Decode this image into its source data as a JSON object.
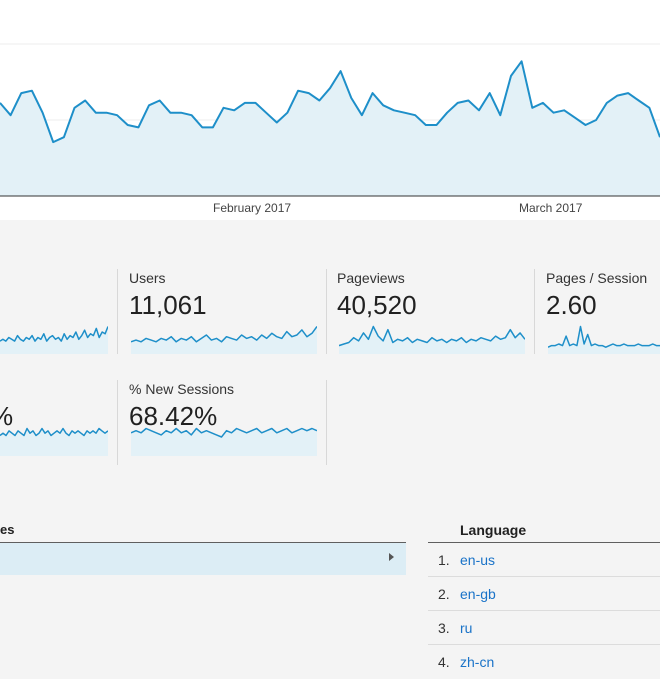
{
  "trend_chart": {
    "x_labels": [
      "February 2017",
      "March 2017"
    ],
    "series_values": [
      38,
      33,
      42,
      43,
      34,
      22,
      24,
      36,
      39,
      34,
      34,
      33,
      29,
      28,
      37,
      39,
      34,
      34,
      33,
      28,
      28,
      36,
      35,
      38,
      38,
      34,
      30,
      34,
      43,
      42,
      39,
      44,
      51,
      40,
      33,
      42,
      37,
      35,
      34,
      33,
      29,
      29,
      34,
      38,
      39,
      35,
      42,
      33,
      49,
      55,
      36,
      38,
      34,
      35,
      32,
      29,
      31,
      38,
      41,
      42,
      39,
      36,
      24
    ],
    "y_max": 80,
    "colors": {
      "line": "#1e8fc9",
      "fill": "#e3f1f7"
    }
  },
  "metrics": [
    {
      "name": "",
      "value": "",
      "spark": [
        6,
        7,
        6,
        8,
        7,
        6,
        9,
        7,
        6,
        8,
        7,
        9,
        6,
        8,
        7,
        10,
        6,
        8,
        9,
        7,
        8,
        6,
        10,
        7,
        9,
        8,
        11,
        7,
        9,
        12,
        8,
        10,
        9,
        13,
        8,
        11,
        10,
        14
      ]
    },
    {
      "name": "Users",
      "value": "11,061",
      "spark": [
        6,
        7,
        6,
        8,
        7,
        6,
        8,
        7,
        9,
        6,
        8,
        7,
        9,
        6,
        8,
        10,
        7,
        8,
        6,
        9,
        8,
        7,
        10,
        8,
        9,
        7,
        10,
        8,
        11,
        9,
        8,
        12,
        9,
        10,
        13,
        9,
        11,
        15
      ]
    },
    {
      "name": "Pageviews",
      "value": "40,520",
      "spark": [
        4,
        5,
        6,
        9,
        7,
        12,
        8,
        16,
        10,
        7,
        14,
        6,
        8,
        7,
        9,
        6,
        8,
        7,
        6,
        9,
        7,
        8,
        6,
        8,
        7,
        9,
        6,
        8,
        7,
        9,
        8,
        7,
        10,
        8,
        9,
        14,
        9,
        12,
        8
      ]
    },
    {
      "name": "Pages / Session",
      "value": "2.60",
      "spark": [
        3,
        4,
        4,
        5,
        4,
        10,
        4,
        5,
        4,
        16,
        5,
        11,
        4,
        5,
        4,
        4,
        3,
        4,
        5,
        4,
        4,
        5,
        4,
        4,
        4,
        5,
        4,
        4,
        4,
        5,
        4,
        4
      ]
    },
    {
      "name": "",
      "value": "%",
      "spark": [
        8,
        9,
        8,
        10,
        9,
        8,
        10,
        9,
        8,
        11,
        9,
        10,
        8,
        9,
        11,
        9,
        10,
        8,
        9,
        10,
        9,
        11,
        9,
        8,
        10,
        9,
        10,
        9,
        8,
        10,
        9,
        10,
        9,
        11,
        10,
        9,
        10
      ]
    },
    {
      "name": "% New Sessions",
      "value": "68.42%",
      "spark": [
        10,
        11,
        10,
        12,
        11,
        10,
        9,
        11,
        10,
        12,
        10,
        11,
        9,
        12,
        10,
        11,
        10,
        9,
        8,
        11,
        10,
        12,
        11,
        10,
        11,
        12,
        10,
        11,
        12,
        10,
        11,
        12,
        10,
        11,
        12,
        11,
        12,
        11
      ]
    }
  ],
  "dimension_table": {
    "header": "es"
  },
  "language_table": {
    "header": "Language",
    "rows": [
      {
        "num": "1.",
        "lang": "en-us"
      },
      {
        "num": "2.",
        "lang": "en-gb"
      },
      {
        "num": "3.",
        "lang": "ru"
      },
      {
        "num": "4.",
        "lang": "zh-cn"
      }
    ]
  }
}
